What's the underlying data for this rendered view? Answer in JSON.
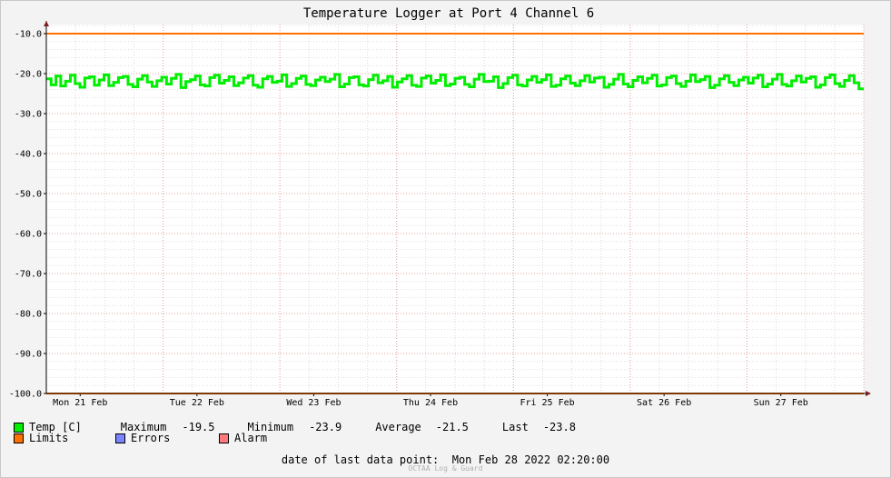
{
  "chart_data": {
    "type": "line",
    "title": "Temperature Logger at Port 4 Channel 6",
    "xlabel": "",
    "ylabel": "",
    "x_ticks": [
      "Mon 21 Feb",
      "Tue 22 Feb",
      "Wed 23 Feb",
      "Thu 24 Feb",
      "Fri 25 Feb",
      "Sat 26 Feb",
      "Sun 27 Feb"
    ],
    "y_ticks": [
      "-10.0",
      "-20.0",
      "-30.0",
      "-40.0",
      "-50.0",
      "-60.0",
      "-70.0",
      "-80.0",
      "-90.0",
      "-100.0"
    ],
    "ylim": [
      -100,
      -10
    ],
    "grid": true,
    "series": [
      {
        "name": "Temp [C]",
        "color": "#00ee00",
        "values": [
          -21.3,
          -22.8,
          -20.6,
          -23.1,
          -21.9,
          -20.4,
          -22.5,
          -23.4,
          -21.1,
          -20.8,
          -22.9,
          -21.6,
          -20.3,
          -23.0,
          -22.2,
          -21.0,
          -20.7,
          -22.7,
          -23.3,
          -21.4,
          -20.5,
          -22.1,
          -23.2,
          -21.8,
          -20.9,
          -22.6,
          -21.2,
          -20.2,
          -23.5,
          -22.0,
          -21.5,
          -20.6,
          -22.8,
          -23.1,
          -21.0,
          -20.4,
          -22.4,
          -21.7,
          -20.8,
          -23.0,
          -22.3,
          -21.1,
          -20.5,
          -22.9,
          -23.4,
          -21.3,
          -20.7,
          -22.2,
          -21.9,
          -20.3,
          -23.2,
          -22.5,
          -21.2,
          -20.6,
          -22.7,
          -23.0,
          -21.6,
          -20.9,
          -22.0,
          -21.4,
          -20.2,
          -23.3,
          -22.6,
          -21.0,
          -20.8,
          -22.8,
          -23.1,
          -21.5,
          -20.4,
          -22.3,
          -21.8,
          -20.7,
          -23.4,
          -22.1,
          -21.3,
          -20.5,
          -22.9,
          -23.2,
          -21.1,
          -20.6,
          -22.4,
          -21.7,
          -20.3,
          -23.0,
          -22.6,
          -21.2,
          -20.9,
          -22.7,
          -23.3,
          -21.4,
          -20.2,
          -22.0,
          -21.9,
          -20.8,
          -23.5,
          -22.5,
          -21.0,
          -20.4,
          -22.8,
          -23.1,
          -21.6,
          -20.7,
          -22.2,
          -21.5,
          -20.3,
          -23.2,
          -22.9,
          -21.3,
          -20.6,
          -22.4,
          -23.0,
          -21.8,
          -20.5,
          -22.1,
          -21.1,
          -20.9,
          -23.4,
          -22.7,
          -21.4,
          -20.2,
          -22.6,
          -23.3,
          -21.7,
          -20.8,
          -22.3,
          -21.2,
          -20.4,
          -23.1,
          -22.8,
          -21.0,
          -20.6,
          -22.5,
          -23.2,
          -21.9,
          -20.3,
          -22.0,
          -21.5,
          -20.7,
          -23.5,
          -22.9,
          -21.3,
          -20.5,
          -22.2,
          -23.0,
          -21.6,
          -20.9,
          -22.4,
          -21.1,
          -20.4,
          -23.3,
          -22.6,
          -21.4,
          -20.2,
          -22.7,
          -23.1,
          -21.8,
          -20.6,
          -22.1,
          -21.2,
          -20.8,
          -23.4,
          -22.8,
          -21.0,
          -20.3,
          -22.5,
          -23.2,
          -21.7,
          -20.5,
          -22.3,
          -23.8
        ]
      },
      {
        "name": "Limits",
        "color": "#ff7000",
        "values_upper": -10,
        "values_lower": -100
      }
    ]
  },
  "legend": {
    "temp_label": "Temp [C]",
    "temp_color": "#00ee00",
    "maximum_label": "Maximum",
    "maximum_value": "-19.5",
    "minimum_label": "Minimum",
    "minimum_value": "-23.9",
    "average_label": "Average",
    "average_value": "-21.5",
    "last_label": "Last",
    "last_value": "-23.8",
    "limits_label": "Limits",
    "limits_color": "#ff7000",
    "errors_label": "Errors",
    "errors_color": "#7b83ff",
    "alarm_label": "Alarm",
    "alarm_color": "#ff7b7b"
  },
  "footer": {
    "last_point_label": "date of last data point:",
    "last_point_value": "Mon Feb 28 2022 02:20:00",
    "credit": "OCTAA Log & Guard"
  }
}
